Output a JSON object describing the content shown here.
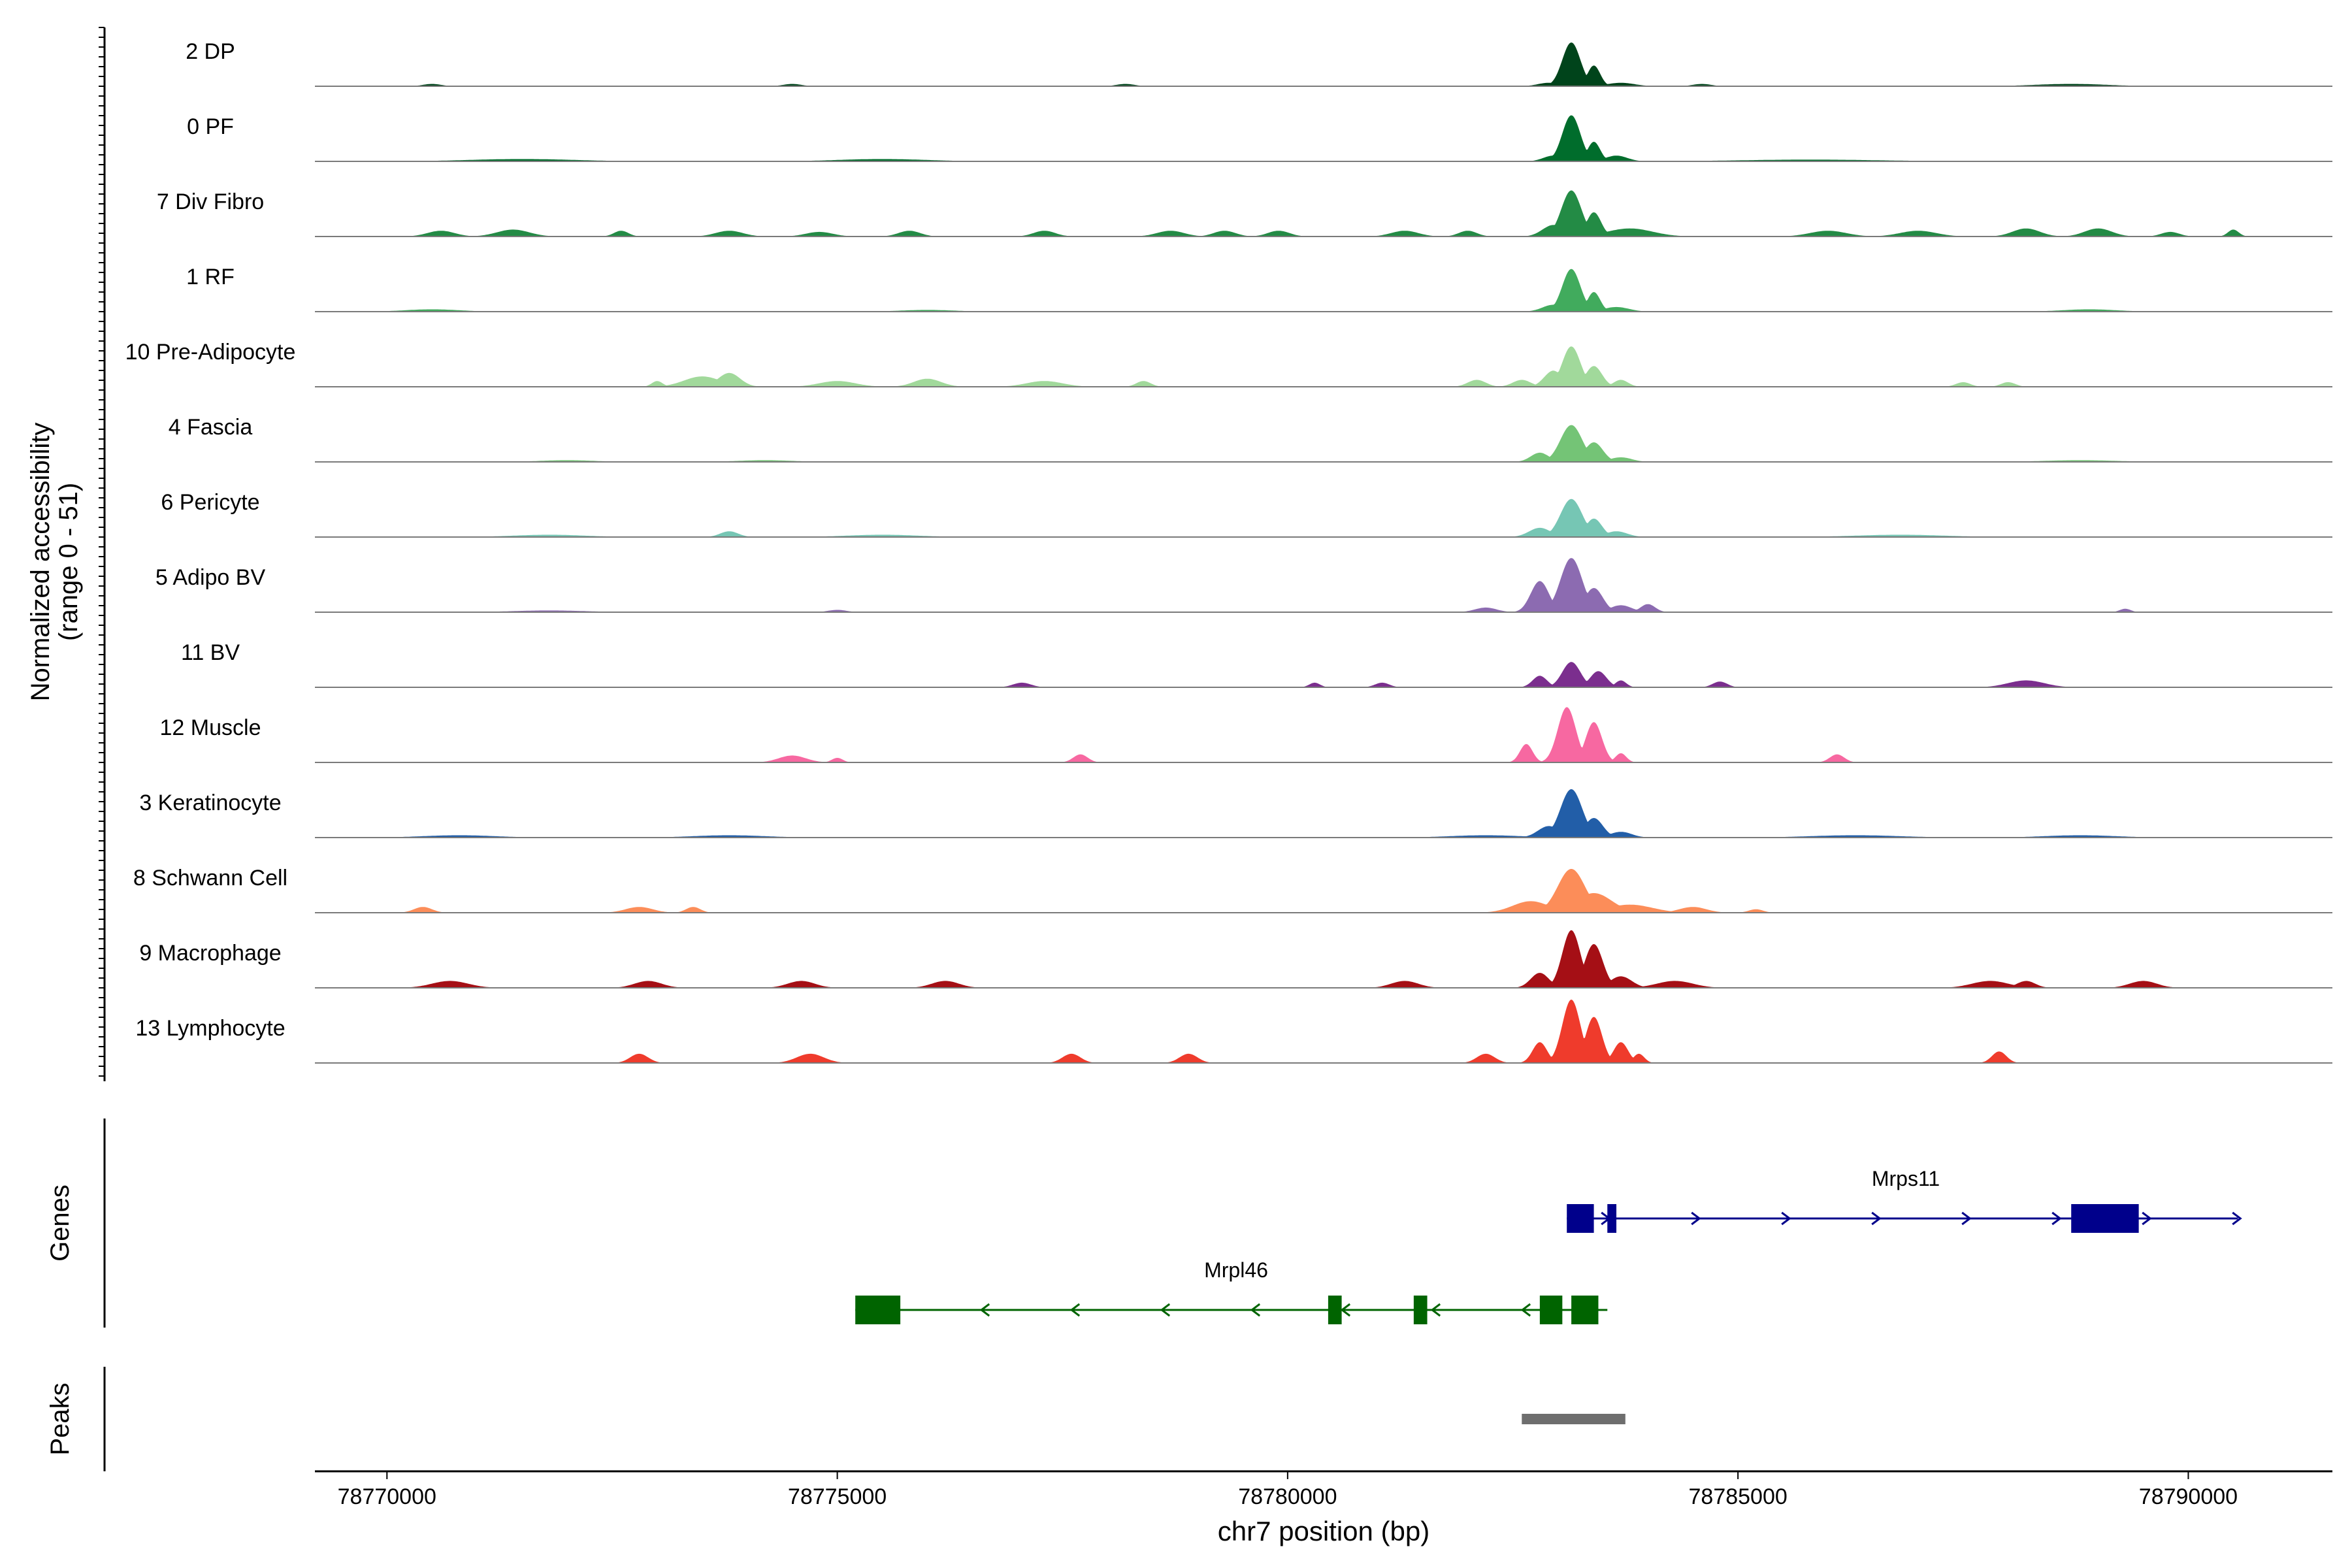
{
  "chart_data": {
    "type": "area",
    "title": "",
    "ylabel_line1": "Normalized accessibility",
    "ylabel_line2": "(range 0 - 51)",
    "xlabel": "chr7 position (bp)",
    "xlim": [
      78769200,
      78791600
    ],
    "ylim": [
      0,
      51
    ],
    "xticks": [
      78770000,
      78775000,
      78780000,
      78785000,
      78790000
    ],
    "xtick_labels": [
      "78770000",
      "78775000",
      "78780000",
      "78785000",
      "78790000"
    ],
    "tracks": [
      {
        "name": "2 DP",
        "color": "#00441b",
        "peaks": [
          [
            78782900,
            120,
            3
          ],
          [
            78783150,
            100,
            38
          ],
          [
            78783400,
            70,
            18
          ],
          [
            78783700,
            150,
            3
          ],
          [
            78770500,
            100,
            2
          ],
          [
            78774500,
            100,
            2
          ],
          [
            78778200,
            100,
            2
          ],
          [
            78784600,
            100,
            2
          ],
          [
            78788700,
            400,
            2
          ]
        ]
      },
      {
        "name": "0 PF",
        "color": "#006d2c",
        "peaks": [
          [
            78782950,
            110,
            5
          ],
          [
            78783150,
            100,
            40
          ],
          [
            78783400,
            70,
            17
          ],
          [
            78783650,
            120,
            5
          ],
          [
            78771500,
            600,
            2
          ],
          [
            78775500,
            500,
            2
          ],
          [
            78785800,
            800,
            1.5
          ]
        ]
      },
      {
        "name": "7 Div Fibro",
        "color": "#238b45",
        "peaks": [
          [
            78770600,
            150,
            5
          ],
          [
            78771400,
            180,
            6
          ],
          [
            78772600,
            80,
            5
          ],
          [
            78773800,
            150,
            5
          ],
          [
            78774800,
            150,
            4
          ],
          [
            78775800,
            120,
            5
          ],
          [
            78777300,
            120,
            5
          ],
          [
            78778700,
            150,
            5
          ],
          [
            78779300,
            120,
            5
          ],
          [
            78779900,
            120,
            5
          ],
          [
            78781300,
            150,
            5
          ],
          [
            78782000,
            100,
            5
          ],
          [
            78782950,
            120,
            10
          ],
          [
            78783150,
            110,
            40
          ],
          [
            78783400,
            80,
            21
          ],
          [
            78783800,
            250,
            7
          ],
          [
            78786000,
            200,
            5
          ],
          [
            78787000,
            200,
            5
          ],
          [
            78788200,
            150,
            7
          ],
          [
            78789000,
            150,
            7
          ],
          [
            78789800,
            100,
            4
          ],
          [
            78790500,
            60,
            6
          ]
        ]
      },
      {
        "name": "1 RF",
        "color": "#41ab5d",
        "peaks": [
          [
            78782950,
            120,
            6
          ],
          [
            78783150,
            100,
            37
          ],
          [
            78783400,
            70,
            17
          ],
          [
            78783650,
            140,
            4
          ],
          [
            78770500,
            300,
            2
          ],
          [
            78776000,
            300,
            1.5
          ],
          [
            78788900,
            300,
            2
          ]
        ]
      },
      {
        "name": "10 Pre-Adipocyte",
        "color": "#a1d99b",
        "peaks": [
          [
            78773000,
            60,
            5
          ],
          [
            78773500,
            200,
            9
          ],
          [
            78773800,
            120,
            12
          ],
          [
            78775000,
            200,
            5
          ],
          [
            78776000,
            150,
            7
          ],
          [
            78777300,
            200,
            5
          ],
          [
            78778400,
            80,
            5
          ],
          [
            78782100,
            100,
            6
          ],
          [
            78782600,
            100,
            6
          ],
          [
            78782950,
            100,
            14
          ],
          [
            78783150,
            100,
            35
          ],
          [
            78783400,
            90,
            18
          ],
          [
            78783700,
            80,
            6
          ],
          [
            78787500,
            80,
            4
          ],
          [
            78788000,
            80,
            4
          ]
        ]
      },
      {
        "name": "4 Fascia",
        "color": "#74c476",
        "peaks": [
          [
            78782800,
            100,
            8
          ],
          [
            78783150,
            120,
            32
          ],
          [
            78783400,
            100,
            17
          ],
          [
            78783700,
            120,
            4
          ],
          [
            78772000,
            300,
            1.5
          ],
          [
            78774200,
            300,
            1.5
          ],
          [
            78788800,
            400,
            1.5
          ]
        ]
      },
      {
        "name": "6 Pericyte",
        "color": "#76c6b4",
        "peaks": [
          [
            78782800,
            120,
            8
          ],
          [
            78783150,
            120,
            33
          ],
          [
            78783400,
            90,
            16
          ],
          [
            78783650,
            120,
            5
          ],
          [
            78773800,
            100,
            5
          ],
          [
            78771800,
            400,
            2
          ],
          [
            78775500,
            400,
            2
          ],
          [
            78786800,
            500,
            2
          ]
        ]
      },
      {
        "name": "5 Adipo BV",
        "color": "#8c6bb1",
        "peaks": [
          [
            78782800,
            100,
            27
          ],
          [
            78783150,
            120,
            47
          ],
          [
            78783400,
            100,
            21
          ],
          [
            78783700,
            120,
            6
          ],
          [
            78784000,
            80,
            7
          ],
          [
            78782200,
            120,
            4
          ],
          [
            78775000,
            100,
            2
          ],
          [
            78789300,
            60,
            3
          ],
          [
            78771800,
            400,
            1.5
          ]
        ]
      },
      {
        "name": "11 BV",
        "color": "#7b2e8e",
        "peaks": [
          [
            78782800,
            80,
            10
          ],
          [
            78783150,
            100,
            22
          ],
          [
            78783450,
            90,
            14
          ],
          [
            78783700,
            60,
            6
          ],
          [
            78777050,
            100,
            4
          ],
          [
            78780300,
            60,
            4
          ],
          [
            78781050,
            80,
            4
          ],
          [
            78784800,
            80,
            5
          ],
          [
            78788200,
            200,
            6
          ]
        ]
      },
      {
        "name": "12 Muscle",
        "color": "#f768a1",
        "peaks": [
          [
            78782650,
            70,
            16
          ],
          [
            78783100,
            100,
            48
          ],
          [
            78783400,
            90,
            35
          ],
          [
            78783700,
            60,
            8
          ],
          [
            78774500,
            150,
            6
          ],
          [
            78775000,
            60,
            4
          ],
          [
            78777700,
            80,
            7
          ],
          [
            78786100,
            80,
            7
          ]
        ]
      },
      {
        "name": "3 Keratinocyte",
        "color": "#225ea8",
        "peaks": [
          [
            78782900,
            120,
            10
          ],
          [
            78783150,
            120,
            42
          ],
          [
            78783400,
            100,
            17
          ],
          [
            78783700,
            120,
            5
          ],
          [
            78770800,
            400,
            2
          ],
          [
            78773800,
            400,
            2
          ],
          [
            78782200,
            400,
            2
          ],
          [
            78786300,
            500,
            2
          ],
          [
            78788800,
            400,
            2
          ]
        ]
      },
      {
        "name": "8 Schwann Cell",
        "color": "#fc8d59",
        "peaks": [
          [
            78770400,
            100,
            5
          ],
          [
            78772800,
            150,
            5
          ],
          [
            78773400,
            80,
            5
          ],
          [
            78782700,
            200,
            10
          ],
          [
            78783150,
            150,
            38
          ],
          [
            78783400,
            200,
            17
          ],
          [
            78783800,
            250,
            7
          ],
          [
            78784500,
            150,
            5
          ],
          [
            78785200,
            80,
            3
          ]
        ]
      },
      {
        "name": "9 Macrophage",
        "color": "#a50f15",
        "peaks": [
          [
            78770700,
            200,
            6
          ],
          [
            78772900,
            150,
            6
          ],
          [
            78774600,
            150,
            6
          ],
          [
            78776200,
            150,
            6
          ],
          [
            78781300,
            150,
            6
          ],
          [
            78782800,
            100,
            13
          ],
          [
            78783150,
            100,
            50
          ],
          [
            78783400,
            100,
            38
          ],
          [
            78783700,
            120,
            10
          ],
          [
            78784300,
            200,
            6
          ],
          [
            78787800,
            200,
            6
          ],
          [
            78788200,
            100,
            6
          ],
          [
            78789500,
            150,
            6
          ]
        ]
      },
      {
        "name": "13 Lymphocyte",
        "color": "#ef3b2c",
        "peaks": [
          [
            78772800,
            100,
            8
          ],
          [
            78774700,
            150,
            8
          ],
          [
            78777600,
            100,
            8
          ],
          [
            78778900,
            100,
            8
          ],
          [
            78782200,
            100,
            8
          ],
          [
            78782800,
            80,
            18
          ],
          [
            78783150,
            100,
            55
          ],
          [
            78783400,
            90,
            40
          ],
          [
            78783700,
            80,
            18
          ],
          [
            78783900,
            60,
            8
          ],
          [
            78787900,
            80,
            10
          ]
        ]
      }
    ],
    "genes_label": "Genes",
    "genes": [
      {
        "name": "Mrps11",
        "strand": "+",
        "color": "#00008b",
        "start": 78783100,
        "end": 78790550,
        "exons": [
          [
            78783100,
            78783400
          ],
          [
            78783550,
            78783650
          ],
          [
            78788700,
            78789450
          ]
        ]
      },
      {
        "name": "Mrpl46",
        "strand": "-",
        "color": "#006400",
        "start": 78775200,
        "end": 78783550,
        "exons": [
          [
            78775200,
            78775700
          ],
          [
            78780450,
            78780600
          ],
          [
            78781400,
            78781550
          ],
          [
            78782800,
            78783050
          ],
          [
            78783150,
            78783450
          ]
        ]
      }
    ],
    "peaks_label": "Peaks",
    "peak_regions": [
      [
        78782600,
        78783750
      ]
    ],
    "peak_color": "#6e6e6e"
  }
}
